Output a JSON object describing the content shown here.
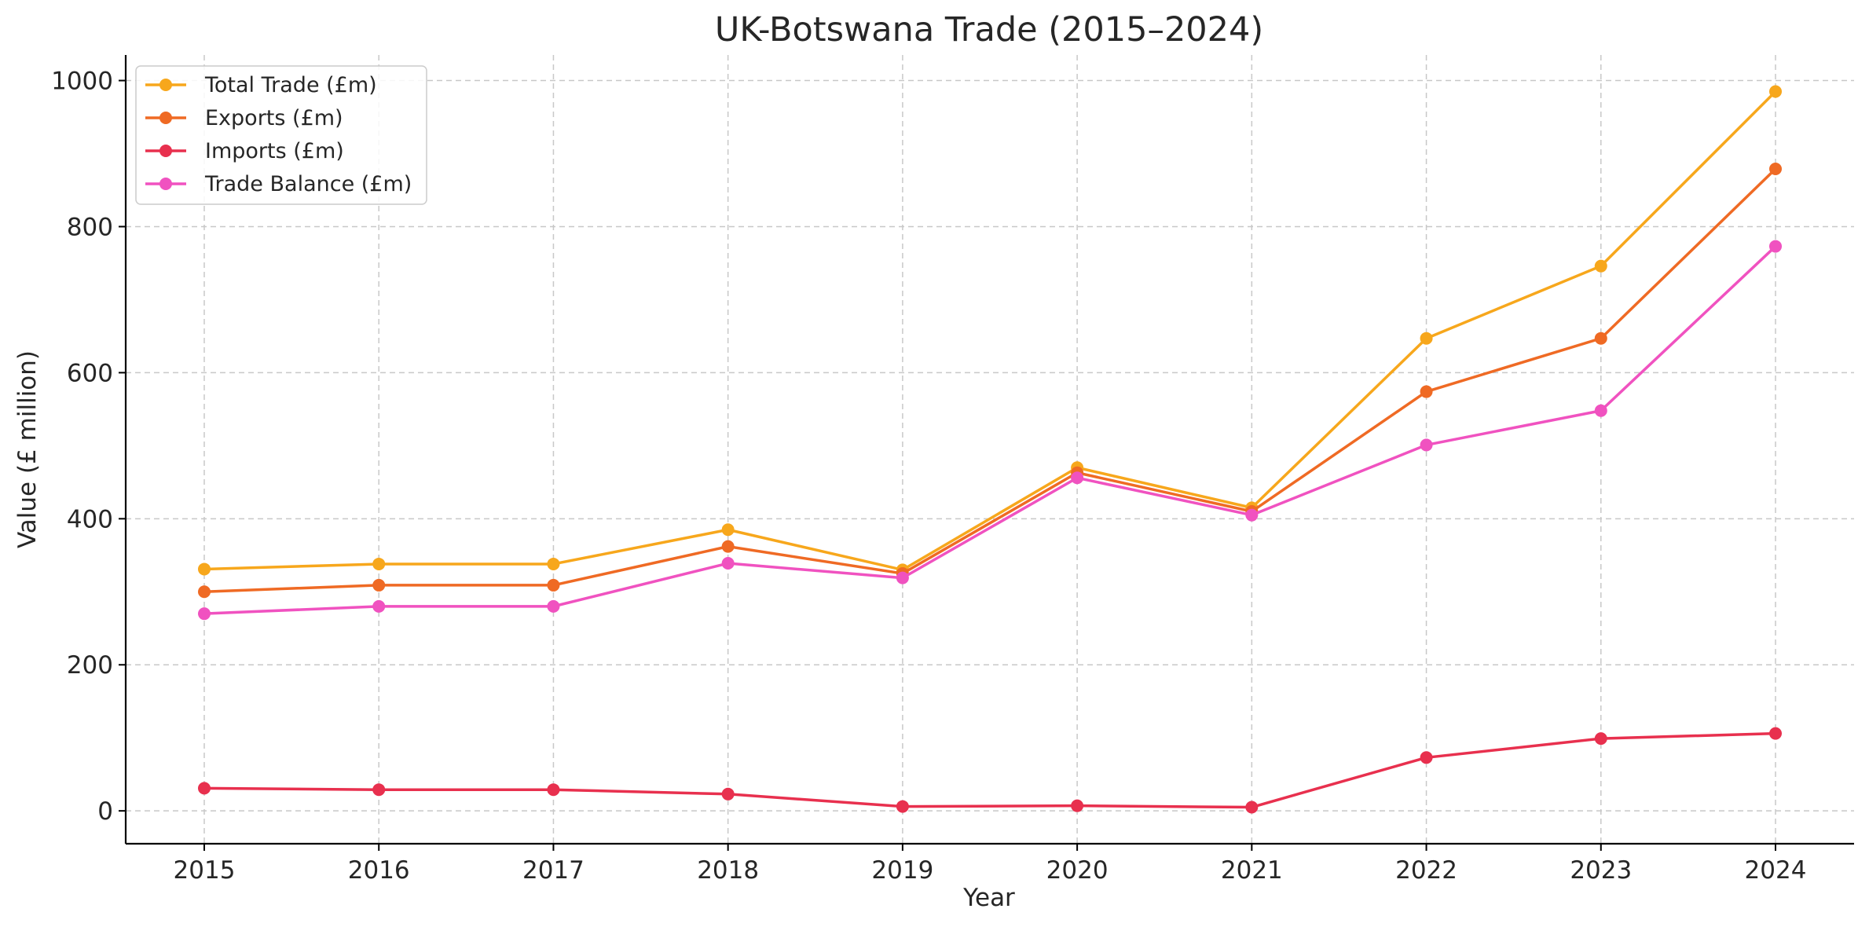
{
  "chart_data": {
    "type": "line",
    "title": "UK-Botswana Trade (2015–2024)",
    "xlabel": "Year",
    "ylabel": "Value (£ million)",
    "x": [
      2015,
      2016,
      2017,
      2018,
      2019,
      2020,
      2021,
      2022,
      2023,
      2024
    ],
    "ylim": [
      -45,
      1035
    ],
    "yticks": [
      0,
      200,
      400,
      600,
      800,
      1000
    ],
    "grid": true,
    "legend_position": "top-left",
    "series": [
      {
        "name": "Total Trade (£m)",
        "color": "#f7a71c",
        "values": [
          331,
          338,
          338,
          385,
          330,
          470,
          415,
          647,
          746,
          985
        ]
      },
      {
        "name": "Exports (£m)",
        "color": "#ef6a24",
        "values": [
          300,
          309,
          309,
          362,
          325,
          463,
          410,
          574,
          647,
          879
        ]
      },
      {
        "name": "Imports (£m)",
        "color": "#e8304e",
        "values": [
          31,
          29,
          29,
          23,
          6,
          7,
          5,
          73,
          99,
          106
        ]
      },
      {
        "name": "Trade Balance (£m)",
        "color": "#f052c0",
        "values": [
          270,
          280,
          280,
          339,
          319,
          456,
          405,
          501,
          548,
          773
        ]
      }
    ]
  }
}
